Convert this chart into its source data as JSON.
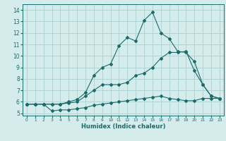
{
  "xlabel": "Humidex (Indice chaleur)",
  "ylabel": "",
  "bg_color": "#d4ecec",
  "grid_color": "#b0d4d4",
  "line_color": "#1a6b6b",
  "xlim": [
    -0.5,
    23.5
  ],
  "ylim": [
    4.8,
    14.5
  ],
  "xticks": [
    0,
    1,
    2,
    3,
    4,
    5,
    6,
    7,
    8,
    9,
    10,
    11,
    12,
    13,
    14,
    15,
    16,
    17,
    18,
    19,
    20,
    21,
    22,
    23
  ],
  "yticks": [
    5,
    6,
    7,
    8,
    9,
    10,
    11,
    12,
    13,
    14
  ],
  "series1_x": [
    0,
    1,
    2,
    3,
    4,
    5,
    6,
    7,
    8,
    9,
    10,
    11,
    12,
    13,
    14,
    15,
    16,
    17,
    18,
    19,
    20,
    21,
    22,
    23
  ],
  "series1_y": [
    5.8,
    5.8,
    5.8,
    5.2,
    5.3,
    5.3,
    5.4,
    5.5,
    5.7,
    5.8,
    5.9,
    6.0,
    6.1,
    6.2,
    6.3,
    6.4,
    6.5,
    6.3,
    6.2,
    6.1,
    6.1,
    6.3,
    6.3,
    6.3
  ],
  "series2_x": [
    0,
    1,
    2,
    3,
    4,
    5,
    6,
    7,
    8,
    9,
    10,
    11,
    12,
    13,
    14,
    15,
    16,
    17,
    18,
    19,
    20,
    21,
    22,
    23
  ],
  "series2_y": [
    5.8,
    5.8,
    5.8,
    5.8,
    5.8,
    5.9,
    6.0,
    6.5,
    7.0,
    7.5,
    7.5,
    7.5,
    7.7,
    8.3,
    8.5,
    9.0,
    9.8,
    10.3,
    10.3,
    10.4,
    8.7,
    7.5,
    6.5,
    6.3
  ],
  "series3_x": [
    0,
    1,
    2,
    3,
    4,
    5,
    6,
    7,
    8,
    9,
    10,
    11,
    12,
    13,
    14,
    15,
    16,
    17,
    18,
    19,
    20,
    21,
    22,
    23
  ],
  "series3_y": [
    5.8,
    5.8,
    5.8,
    5.8,
    5.8,
    6.0,
    6.2,
    6.8,
    8.3,
    9.0,
    9.3,
    10.9,
    11.6,
    11.3,
    13.1,
    13.8,
    12.0,
    11.5,
    10.4,
    10.3,
    9.5,
    7.5,
    6.5,
    6.3
  ]
}
